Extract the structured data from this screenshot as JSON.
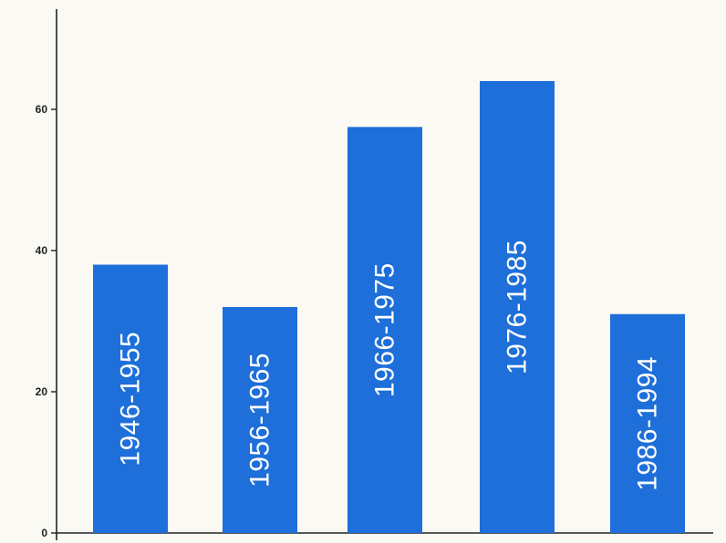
{
  "colors": {
    "bar": "#1e6fd9",
    "axis": "#222222",
    "background": "#fbf9f4"
  },
  "chart_data": {
    "type": "bar",
    "title": "",
    "xlabel": "",
    "ylabel": "",
    "categories": [
      "1946-1955",
      "1956-1965",
      "1966-1975",
      "1976-1985",
      "1986-1994"
    ],
    "values": [
      38,
      32,
      57.5,
      64,
      31
    ],
    "ylim": [
      0,
      70
    ],
    "yticks": [
      0,
      20,
      40,
      60
    ],
    "category_labels_inside_bars": true,
    "grid": false,
    "legend": "none"
  }
}
